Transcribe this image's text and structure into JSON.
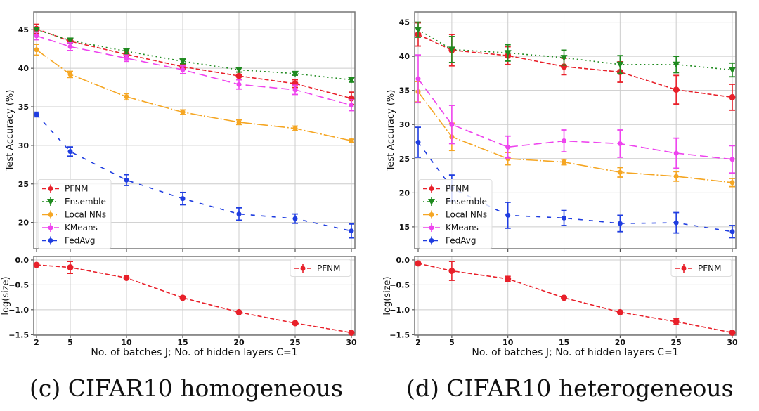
{
  "chart_data": [
    {
      "type": "line",
      "panel": "top-left",
      "ylabel": "Test Accuracy (%)",
      "ylim": [
        16.6,
        47.3
      ],
      "yticks": [
        20,
        25,
        30,
        35,
        40,
        45
      ],
      "x": [
        2,
        5,
        10,
        15,
        20,
        25,
        30
      ],
      "grid": true,
      "legend": "bottom-left",
      "series": [
        {
          "name": "PFNM",
          "color": "#e8202a",
          "values": [
            45.1,
            43.5,
            41.8,
            40.2,
            39.0,
            38.0,
            36.1
          ],
          "err": [
            0.6,
            0.3,
            0.3,
            0.3,
            0.5,
            0.5,
            0.8
          ]
        },
        {
          "name": "Ensemble",
          "color": "#1f8a1f",
          "values": [
            45.0,
            43.6,
            42.2,
            40.9,
            39.8,
            39.3,
            38.5
          ],
          "err": [
            0.3,
            0.3,
            0.3,
            0.3,
            0.3,
            0.2,
            0.3
          ]
        },
        {
          "name": "Local NNs",
          "color": "#f5a623",
          "values": [
            42.4,
            39.2,
            36.3,
            34.3,
            33.0,
            32.2,
            30.6
          ],
          "err": [
            0.7,
            0.4,
            0.4,
            0.3,
            0.3,
            0.3,
            0.2
          ]
        },
        {
          "name": "KMeans",
          "color": "#ee44ee",
          "values": [
            44.2,
            42.8,
            41.3,
            39.8,
            37.9,
            37.2,
            35.2
          ],
          "err": [
            0.5,
            0.5,
            0.4,
            0.5,
            0.6,
            0.6,
            0.7
          ]
        },
        {
          "name": "FedAvg",
          "color": "#1f3de0",
          "values": [
            34.0,
            29.2,
            25.5,
            23.1,
            21.1,
            20.5,
            18.9
          ],
          "err": [
            0.3,
            0.6,
            0.7,
            0.8,
            0.8,
            0.6,
            0.9
          ]
        }
      ]
    },
    {
      "type": "line",
      "panel": "bottom-left",
      "ylabel": "log(size)",
      "xlabel": "No. of batches J; No. of hidden layers C=1",
      "ylim": [
        -1.51,
        0.07
      ],
      "yticks": [
        "0.0",
        "-0.5",
        "-1.0",
        "-1.5"
      ],
      "x": [
        2,
        5,
        10,
        15,
        20,
        25,
        30
      ],
      "grid": true,
      "legend": "top-right",
      "series": [
        {
          "name": "PFNM",
          "color": "#e8202a",
          "values": [
            -0.1,
            -0.15,
            -0.36,
            -0.76,
            -1.05,
            -1.27,
            -1.46
          ],
          "err": [
            0.02,
            0.12,
            0.02,
            0.02,
            0.02,
            0.02,
            0.02
          ]
        }
      ]
    },
    {
      "type": "line",
      "panel": "top-right",
      "ylabel": "Test Accuracy (%)",
      "ylim": [
        11.8,
        46.5
      ],
      "yticks": [
        15,
        20,
        25,
        30,
        35,
        40,
        45
      ],
      "x": [
        2,
        5,
        10,
        15,
        20,
        25,
        30
      ],
      "grid": true,
      "legend": "bottom-left",
      "series": [
        {
          "name": "PFNM",
          "color": "#e8202a",
          "values": [
            43.2,
            40.9,
            40.1,
            38.5,
            37.7,
            35.1,
            34.0
          ],
          "err": [
            1.7,
            2.3,
            1.3,
            1.2,
            1.5,
            2.1,
            1.9
          ]
        },
        {
          "name": "Ensemble",
          "color": "#1f8a1f",
          "values": [
            43.9,
            41.0,
            40.5,
            39.8,
            38.8,
            38.8,
            38.0
          ],
          "err": [
            1.1,
            1.9,
            1.2,
            1.1,
            1.3,
            1.2,
            1.0
          ]
        },
        {
          "name": "Local NNs",
          "color": "#f5a623",
          "values": [
            34.8,
            28.2,
            25.0,
            24.5,
            23.0,
            22.4,
            21.5
          ],
          "err": [
            1.5,
            2.0,
            0.9,
            0.4,
            0.7,
            0.7,
            0.6
          ]
        },
        {
          "name": "KMeans",
          "color": "#ee44ee",
          "values": [
            36.7,
            30.0,
            26.7,
            27.6,
            27.2,
            25.8,
            24.9
          ],
          "err": [
            3.5,
            2.8,
            1.6,
            1.6,
            2.0,
            2.2,
            2.0
          ]
        },
        {
          "name": "FedAvg",
          "color": "#1f3de0",
          "values": [
            27.4,
            20.7,
            16.7,
            16.3,
            15.5,
            15.6,
            14.3
          ],
          "err": [
            2.2,
            1.9,
            1.9,
            1.1,
            1.2,
            1.5,
            0.9
          ]
        }
      ]
    },
    {
      "type": "line",
      "panel": "bottom-right",
      "ylabel": "log(size)",
      "xlabel": "No. of batches J; No. of hidden layers C=1",
      "ylim": [
        -1.51,
        0.07
      ],
      "yticks": [
        "0.0",
        "-0.5",
        "-1.0",
        "-1.5"
      ],
      "x": [
        2,
        5,
        10,
        15,
        20,
        25,
        30
      ],
      "grid": true,
      "legend": "top-right",
      "series": [
        {
          "name": "PFNM",
          "color": "#e8202a",
          "values": [
            -0.07,
            -0.22,
            -0.38,
            -0.76,
            -1.05,
            -1.24,
            -1.46
          ],
          "err": [
            0.02,
            0.19,
            0.05,
            0.02,
            0.02,
            0.06,
            0.02
          ]
        }
      ]
    }
  ],
  "captions": [
    "(c) CIFAR10 homogeneous",
    "(d) CIFAR10 heterogeneous"
  ]
}
